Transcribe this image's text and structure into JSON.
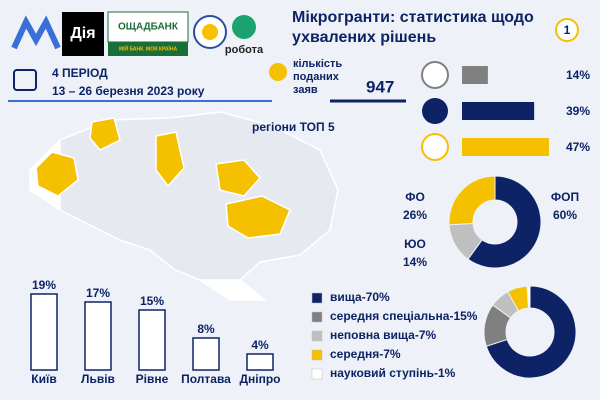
{
  "header": {
    "title": "Мікрогранти: статистика щодо ухвалених рішень",
    "badge": "1",
    "logos": [
      "Дія",
      "ОЩАДБАНК",
      "МІЙ БАНК. МОЯ КРАЇНА",
      "робота"
    ]
  },
  "period": {
    "label": "4 ПЕРІОД",
    "dates": "13  – 26 березня 2023 року"
  },
  "applications": {
    "label": "кількість поданих заяв",
    "value": 947
  },
  "map": {
    "title": "регіони ТОП 5"
  },
  "chart_data": [
    {
      "type": "hbar",
      "categories": [
        null,
        null,
        null
      ],
      "values": [
        14,
        39,
        47
      ],
      "value_labels": [
        "14%",
        "39%",
        "47%"
      ],
      "colors": [
        "#808080",
        "#0d2366",
        "#f5c000"
      ]
    },
    {
      "type": "donut",
      "categories": [
        "ФОП",
        "ЮО",
        "ФО"
      ],
      "values": [
        60,
        14,
        26
      ],
      "value_labels": [
        "60%",
        "14%",
        "26%"
      ],
      "colors": [
        "#0d2366",
        "#bfbfbf",
        "#f5c000"
      ]
    },
    {
      "type": "bar",
      "categories": [
        "Київ",
        "Львів",
        "Рівне",
        "Полтава",
        "Дніпро"
      ],
      "values": [
        19,
        17,
        15,
        8,
        4
      ],
      "value_labels": [
        "19%",
        "17%",
        "15%",
        "8%",
        "4%"
      ],
      "color": "#0d2366"
    },
    {
      "type": "donut",
      "categories": [
        "вища-70%",
        "середня спеціальна-15%",
        "неповна вища-7%",
        "середня-7%",
        "науковий ступінь-1%"
      ],
      "values": [
        70,
        15,
        7,
        7,
        1
      ],
      "colors": [
        "#0d2366",
        "#808080",
        "#bfbfbf",
        "#f5c000",
        "#ffffff"
      ]
    }
  ]
}
